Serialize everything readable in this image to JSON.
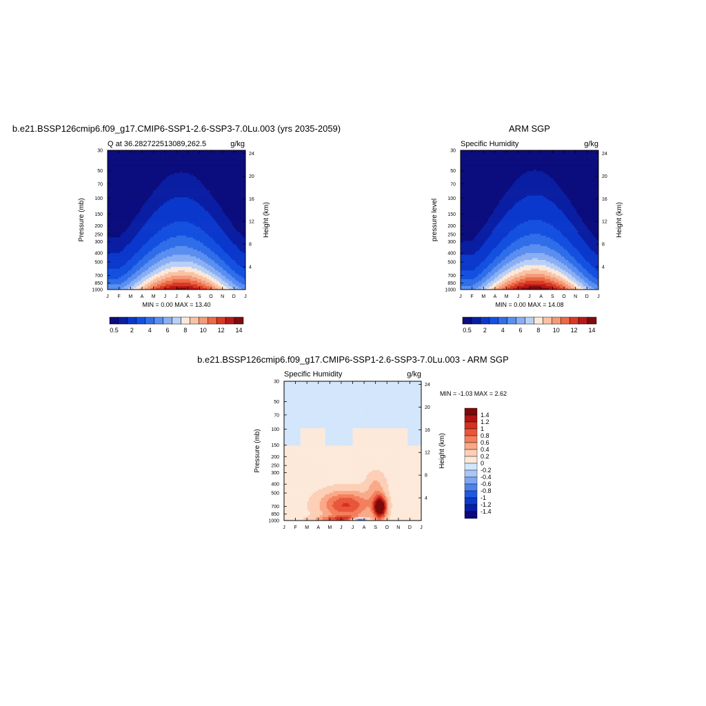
{
  "colors": {
    "blue_red_15": [
      "#0b0c7d",
      "#0a1ea3",
      "#0b38cc",
      "#1450e0",
      "#2f6ee8",
      "#5a8ef0",
      "#8aaef3",
      "#b9d0f6",
      "#fce8da",
      "#f9c2a4",
      "#f59a78",
      "#ec6a47",
      "#d93a23",
      "#b7191a",
      "#7f0c0c"
    ],
    "diff_16": [
      "#0a0a7d",
      "#0a1ea8",
      "#0b3acc",
      "#1e5ae0",
      "#4d82ec",
      "#7fa6f2",
      "#a9c6f6",
      "#d3e6fb",
      "#fde9da",
      "#fccfb6",
      "#f9a988",
      "#f47f5c",
      "#e8553a",
      "#d4301f",
      "#b01514",
      "#7d0a0a"
    ]
  },
  "months": [
    "J",
    "F",
    "M",
    "A",
    "M",
    "J",
    "J",
    "A",
    "S",
    "O",
    "N",
    "D",
    "J"
  ],
  "left_panel": {
    "title": "b.e21.BSSP126cmip6.f09_g17.CMIP6-SSP1-2.6-SSP3-7.0Lu.003 (yrs 2035-2059)",
    "left_subtitle": "Q at 36.282722513089,262.5",
    "right_subtitle": "g/kg",
    "ylabel": "Pressure (mb)",
    "right_axis_label": "Height (km)",
    "minmax": "MIN =   0.00 MAX =  13.40",
    "colorbar_labels": [
      "0.5",
      "2",
      "4",
      "6",
      "8",
      "10",
      "12",
      "14"
    ]
  },
  "right_panel": {
    "title": "ARM SGP",
    "left_subtitle": "Specific Humidity",
    "right_subtitle": "g/kg",
    "ylabel": "pressure level",
    "right_axis_label": "Height (km)",
    "minmax": "MIN =   0.00 MAX =  14.08",
    "colorbar_labels": [
      "0.5",
      "2",
      "4",
      "6",
      "8",
      "10",
      "12",
      "14"
    ]
  },
  "diff_panel": {
    "title": "b.e21.BSSP126cmip6.f09_g17.CMIP6-SSP1-2.6-SSP3-7.0Lu.003 - ARM SGP",
    "left_subtitle": "Specific Humidity",
    "right_subtitle": "g/kg",
    "ylabel": "Pressure (mb)",
    "right_axis_label": "Height (km)",
    "minmax": "MIN =  -1.03 MAX =   2.62",
    "colorbar_labels": [
      "1.4",
      "1.2",
      "1",
      "0.8",
      "0.6",
      "0.4",
      "0.2",
      "0",
      "-0.2",
      "-0.4",
      "-0.6",
      "-0.8",
      "-1",
      "-1.2",
      "-1.4"
    ]
  },
  "chart_data": [
    {
      "type": "heatmap",
      "title": "b.e21.BSSP126cmip6.f09_g17.CMIP6-SSP1-2.6-SSP3-7.0Lu.003 (yrs 2035-2059)",
      "subtitle": "Q at 36.282722513089,262.5",
      "units": "g/kg",
      "x": [
        "J",
        "F",
        "M",
        "A",
        "M",
        "J",
        "J",
        "A",
        "S",
        "O",
        "N",
        "D",
        "J"
      ],
      "y_ticks": [
        30,
        50,
        70,
        100,
        150,
        200,
        250,
        300,
        400,
        500,
        700,
        850,
        1000
      ],
      "right_y_ticks": [
        24,
        20,
        16,
        12,
        8,
        4
      ],
      "ylabel": "Pressure (mb)",
      "y2label": "Height (km)",
      "ylim": [
        30,
        1000
      ],
      "log_y": true,
      "min": 0.0,
      "max": 13.4,
      "levels": [
        0.5,
        1,
        2,
        3,
        4,
        5,
        6,
        7,
        8,
        9,
        10,
        11,
        12,
        13,
        14
      ]
    },
    {
      "type": "heatmap",
      "title": "ARM SGP",
      "subtitle": "Specific Humidity",
      "units": "g/kg",
      "x": [
        "J",
        "F",
        "M",
        "A",
        "M",
        "J",
        "J",
        "A",
        "S",
        "O",
        "N",
        "D",
        "J"
      ],
      "y_ticks": [
        30,
        50,
        70,
        100,
        150,
        200,
        250,
        300,
        400,
        500,
        700,
        850,
        1000
      ],
      "right_y_ticks": [
        24,
        20,
        16,
        12,
        8,
        4
      ],
      "ylabel": "pressure level",
      "y2label": "Height (km)",
      "ylim": [
        30,
        1000
      ],
      "log_y": true,
      "min": 0.0,
      "max": 14.08,
      "levels": [
        0.5,
        1,
        2,
        3,
        4,
        5,
        6,
        7,
        8,
        9,
        10,
        11,
        12,
        13,
        14
      ]
    },
    {
      "type": "heatmap",
      "title": "b.e21.BSSP126cmip6.f09_g17.CMIP6-SSP1-2.6-SSP3-7.0Lu.003 - ARM SGP",
      "subtitle": "Specific Humidity",
      "units": "g/kg",
      "x": [
        "J",
        "F",
        "M",
        "A",
        "M",
        "J",
        "J",
        "A",
        "S",
        "O",
        "N",
        "D",
        "J"
      ],
      "y_ticks": [
        30,
        50,
        70,
        100,
        150,
        200,
        250,
        300,
        400,
        500,
        700,
        850,
        1000
      ],
      "right_y_ticks": [
        24,
        20,
        16,
        12,
        8,
        4
      ],
      "ylabel": "Pressure (mb)",
      "y2label": "Height (km)",
      "ylim": [
        30,
        1000
      ],
      "log_y": true,
      "min": -1.03,
      "max": 2.62,
      "levels": [
        -1.4,
        -1.2,
        -1,
        -0.8,
        -0.6,
        -0.4,
        -0.2,
        0,
        0.2,
        0.4,
        0.6,
        0.8,
        1,
        1.2,
        1.4
      ]
    }
  ]
}
